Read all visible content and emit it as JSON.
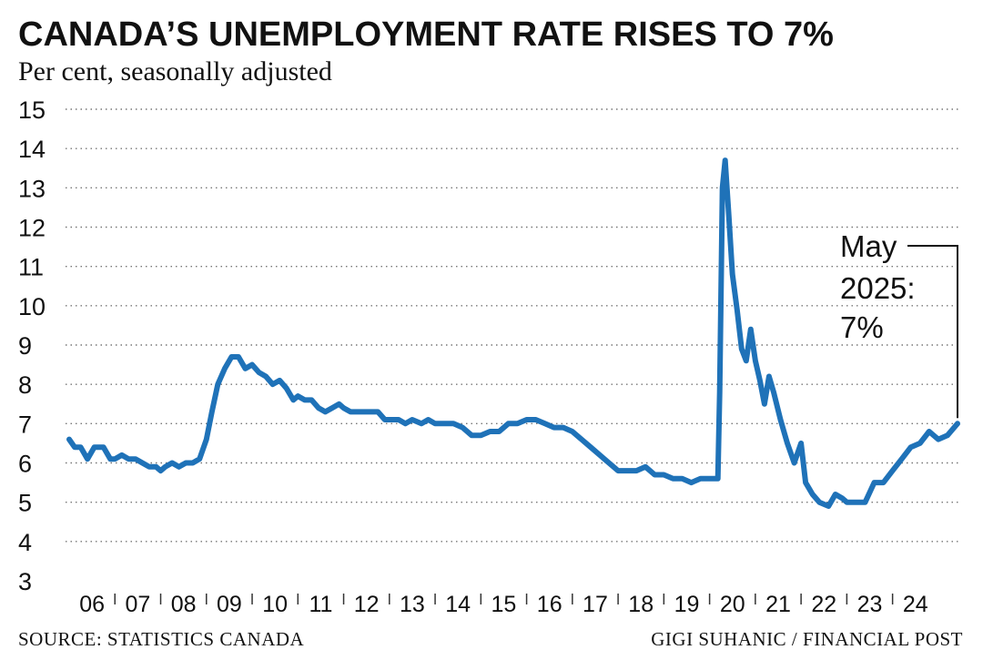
{
  "chart_data": {
    "type": "line",
    "title": "CANADA’S UNEMPLOYMENT RATE RISES TO 7%",
    "subtitle": "Per cent, seasonally adjusted",
    "ylim": [
      3,
      15
    ],
    "yticks": [
      "3",
      "4",
      "5",
      "6",
      "7",
      "8",
      "9",
      "10",
      "11",
      "12",
      "13",
      "14",
      "15"
    ],
    "x_start_year": 2006,
    "x_end_year": 2025.42,
    "categories": [
      "06",
      "07",
      "08",
      "09",
      "10",
      "11",
      "12",
      "13",
      "14",
      "15",
      "16",
      "17",
      "18",
      "19",
      "20",
      "21",
      "22",
      "23",
      "24"
    ],
    "series": [
      {
        "name": "Unemployment rate",
        "color": "#1f72b8",
        "points": [
          [
            2006.0,
            6.6
          ],
          [
            2006.12,
            6.4
          ],
          [
            2006.25,
            6.4
          ],
          [
            2006.4,
            6.1
          ],
          [
            2006.55,
            6.4
          ],
          [
            2006.75,
            6.4
          ],
          [
            2006.9,
            6.1
          ],
          [
            2007.0,
            6.1
          ],
          [
            2007.15,
            6.2
          ],
          [
            2007.3,
            6.1
          ],
          [
            2007.45,
            6.1
          ],
          [
            2007.6,
            6.0
          ],
          [
            2007.75,
            5.9
          ],
          [
            2007.9,
            5.9
          ],
          [
            2008.0,
            5.8
          ],
          [
            2008.1,
            5.9
          ],
          [
            2008.25,
            6.0
          ],
          [
            2008.4,
            5.9
          ],
          [
            2008.55,
            6.0
          ],
          [
            2008.7,
            6.0
          ],
          [
            2008.85,
            6.1
          ],
          [
            2009.0,
            6.6
          ],
          [
            2009.12,
            7.3
          ],
          [
            2009.25,
            8.0
          ],
          [
            2009.4,
            8.4
          ],
          [
            2009.55,
            8.7
          ],
          [
            2009.7,
            8.7
          ],
          [
            2009.85,
            8.4
          ],
          [
            2010.0,
            8.5
          ],
          [
            2010.15,
            8.3
          ],
          [
            2010.3,
            8.2
          ],
          [
            2010.45,
            8.0
          ],
          [
            2010.6,
            8.1
          ],
          [
            2010.75,
            7.9
          ],
          [
            2010.9,
            7.6
          ],
          [
            2011.0,
            7.7
          ],
          [
            2011.15,
            7.6
          ],
          [
            2011.3,
            7.6
          ],
          [
            2011.45,
            7.4
          ],
          [
            2011.6,
            7.3
          ],
          [
            2011.75,
            7.4
          ],
          [
            2011.9,
            7.5
          ],
          [
            2012.0,
            7.4
          ],
          [
            2012.15,
            7.3
          ],
          [
            2012.3,
            7.3
          ],
          [
            2012.45,
            7.3
          ],
          [
            2012.6,
            7.3
          ],
          [
            2012.75,
            7.3
          ],
          [
            2012.9,
            7.1
          ],
          [
            2013.0,
            7.1
          ],
          [
            2013.2,
            7.1
          ],
          [
            2013.35,
            7.0
          ],
          [
            2013.5,
            7.1
          ],
          [
            2013.7,
            7.0
          ],
          [
            2013.85,
            7.1
          ],
          [
            2014.0,
            7.0
          ],
          [
            2014.2,
            7.0
          ],
          [
            2014.4,
            7.0
          ],
          [
            2014.6,
            6.9
          ],
          [
            2014.8,
            6.7
          ],
          [
            2015.0,
            6.7
          ],
          [
            2015.2,
            6.8
          ],
          [
            2015.4,
            6.8
          ],
          [
            2015.6,
            7.0
          ],
          [
            2015.8,
            7.0
          ],
          [
            2016.0,
            7.1
          ],
          [
            2016.2,
            7.1
          ],
          [
            2016.4,
            7.0
          ],
          [
            2016.6,
            6.9
          ],
          [
            2016.8,
            6.9
          ],
          [
            2017.0,
            6.8
          ],
          [
            2017.2,
            6.6
          ],
          [
            2017.4,
            6.4
          ],
          [
            2017.6,
            6.2
          ],
          [
            2017.8,
            6.0
          ],
          [
            2018.0,
            5.8
          ],
          [
            2018.2,
            5.8
          ],
          [
            2018.4,
            5.8
          ],
          [
            2018.6,
            5.9
          ],
          [
            2018.8,
            5.7
          ],
          [
            2019.0,
            5.7
          ],
          [
            2019.2,
            5.6
          ],
          [
            2019.4,
            5.6
          ],
          [
            2019.6,
            5.5
          ],
          [
            2019.8,
            5.6
          ],
          [
            2020.0,
            5.6
          ],
          [
            2020.18,
            5.6
          ],
          [
            2020.22,
            7.8
          ],
          [
            2020.28,
            13.0
          ],
          [
            2020.34,
            13.7
          ],
          [
            2020.42,
            12.3
          ],
          [
            2020.5,
            10.8
          ],
          [
            2020.6,
            9.9
          ],
          [
            2020.7,
            8.9
          ],
          [
            2020.8,
            8.6
          ],
          [
            2020.9,
            9.4
          ],
          [
            2021.0,
            8.6
          ],
          [
            2021.1,
            8.1
          ],
          [
            2021.2,
            7.5
          ],
          [
            2021.3,
            8.2
          ],
          [
            2021.4,
            7.8
          ],
          [
            2021.55,
            7.1
          ],
          [
            2021.7,
            6.5
          ],
          [
            2021.85,
            6.0
          ],
          [
            2022.0,
            6.5
          ],
          [
            2022.1,
            5.5
          ],
          [
            2022.25,
            5.2
          ],
          [
            2022.4,
            5.0
          ],
          [
            2022.6,
            4.9
          ],
          [
            2022.75,
            5.2
          ],
          [
            2022.9,
            5.1
          ],
          [
            2023.0,
            5.0
          ],
          [
            2023.2,
            5.0
          ],
          [
            2023.4,
            5.0
          ],
          [
            2023.6,
            5.5
          ],
          [
            2023.8,
            5.5
          ],
          [
            2024.0,
            5.8
          ],
          [
            2024.2,
            6.1
          ],
          [
            2024.4,
            6.4
          ],
          [
            2024.6,
            6.5
          ],
          [
            2024.8,
            6.8
          ],
          [
            2025.0,
            6.6
          ],
          [
            2025.2,
            6.7
          ],
          [
            2025.42,
            7.0
          ]
        ]
      }
    ],
    "annotation": {
      "lines": [
        "May",
        "2025:",
        "7%"
      ],
      "x": 2025.42,
      "y": 7.0
    },
    "grid": true,
    "xlabel": "",
    "ylabel": ""
  },
  "footer": {
    "source": "SOURCE: STATISTICS CANADA",
    "credit": "GIGI SUHANIC / FINANCIAL POST"
  }
}
